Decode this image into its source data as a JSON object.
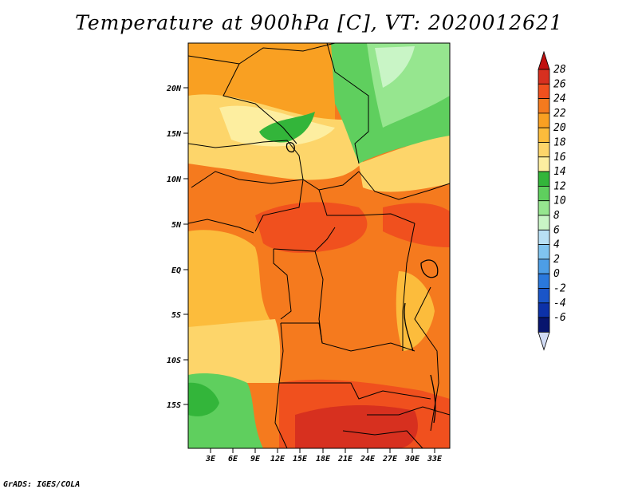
{
  "title": "Temperature at 900hPa [C], VT: 2020012621",
  "footer": "GrADS: IGES/COLA",
  "map": {
    "lon_range": [
      0,
      35
    ],
    "lat_range": [
      -20,
      25
    ],
    "lon_ticks": [
      "3E",
      "6E",
      "9E",
      "12E",
      "15E",
      "18E",
      "21E",
      "24E",
      "27E",
      "30E",
      "33E"
    ],
    "lat_ticks": [
      "20N",
      "15N",
      "10N",
      "5N",
      "EQ",
      "5S",
      "10S",
      "15S"
    ]
  },
  "colorbar": {
    "labels": [
      "28",
      "26",
      "24",
      "22",
      "20",
      "18",
      "16",
      "14",
      "12",
      "10",
      "8",
      "6",
      "4",
      "2",
      "0",
      "-2",
      "-4",
      "-6"
    ],
    "colors": [
      "#d7301f",
      "#f0501e",
      "#f57a1e",
      "#f9a022",
      "#fcbc3c",
      "#fdd56a",
      "#fdeea0",
      "#33b53a",
      "#5fcf5e",
      "#96e68f",
      "#c9f5c6",
      "#b8e0f5",
      "#80c4f0",
      "#4d9ee6",
      "#2a78dc",
      "#1a55c8",
      "#0c31a8",
      "#08156e"
    ],
    "over_color": "#c01010",
    "under_color": "#d2dcf5"
  }
}
